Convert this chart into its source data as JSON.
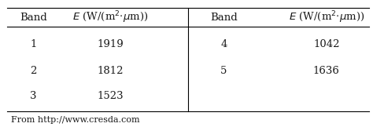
{
  "left_bands": [
    "1",
    "2",
    "3"
  ],
  "left_values": [
    "1919",
    "1812",
    "1523"
  ],
  "right_bands": [
    "4",
    "5"
  ],
  "right_values": [
    "1042",
    "1636"
  ],
  "col_header_band": "Band",
  "footnote": "From http://www.cresda.com",
  "text_color": "#1a1a1a",
  "header_fontsize": 9.5,
  "data_fontsize": 9.5,
  "footnote_fontsize": 8.0,
  "fig_width": 4.74,
  "fig_height": 1.62,
  "dpi": 100
}
